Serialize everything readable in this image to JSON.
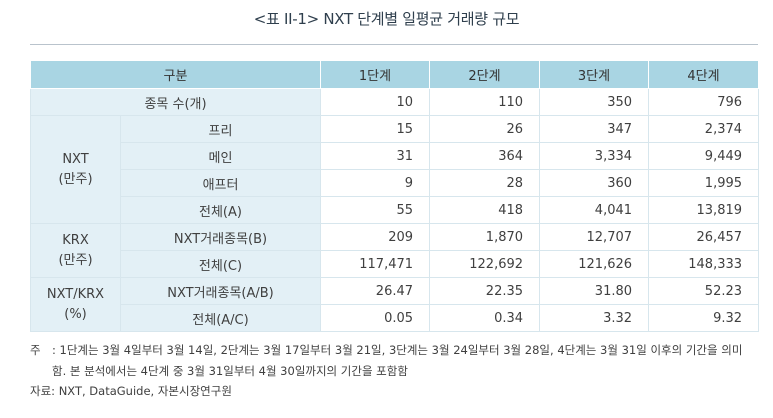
{
  "title": "<표 II-1> NXT 단계별 일평균 거래량 규모",
  "header": {
    "category": "구분",
    "stages": [
      "1단계",
      "2단계",
      "3단계",
      "4단계"
    ]
  },
  "rows": {
    "stock_count": {
      "label": "종목 수(개)",
      "values": [
        "10",
        "110",
        "350",
        "796"
      ]
    },
    "nxt": {
      "group_line1": "NXT",
      "group_line2": "(만주)",
      "rows": [
        {
          "label": "프리",
          "values": [
            "15",
            "26",
            "347",
            "2,374"
          ]
        },
        {
          "label": "메인",
          "values": [
            "31",
            "364",
            "3,334",
            "9,449"
          ]
        },
        {
          "label": "애프터",
          "values": [
            "9",
            "28",
            "360",
            "1,995"
          ]
        },
        {
          "label": "전체(A)",
          "values": [
            "55",
            "418",
            "4,041",
            "13,819"
          ]
        }
      ]
    },
    "krx": {
      "group_line1": "KRX",
      "group_line2": "(만주)",
      "rows": [
        {
          "label": "NXT거래종목(B)",
          "values": [
            "209",
            "1,870",
            "12,707",
            "26,457"
          ]
        },
        {
          "label": "전체(C)",
          "values": [
            "117,471",
            "122,692",
            "121,626",
            "148,333"
          ]
        }
      ]
    },
    "ratio": {
      "group_line1": "NXT/KRX",
      "group_line2": "(%)",
      "rows": [
        {
          "label": "NXT거래종목(A/B)",
          "values": [
            "26.47",
            "22.35",
            "31.80",
            "52.23"
          ]
        },
        {
          "label": "전체(A/C)",
          "values": [
            "0.05",
            "0.34",
            "3.32",
            "9.32"
          ]
        }
      ]
    }
  },
  "note": {
    "label": "주",
    "line1": ": 1단계는 3월 4일부터 3월 14일, 2단계는 3월 17일부터 3월 21일, 3단계는 3월 24일부터 3월 28일, 4단계는 3월 31일 이후의 기간을 의미",
    "line2": "함. 본 분석에서는 4단계 중 3월 31일부터 4월 30일까지의 기간을 포함함"
  },
  "source": "자료: NXT, DataGuide, 자본시장연구원"
}
